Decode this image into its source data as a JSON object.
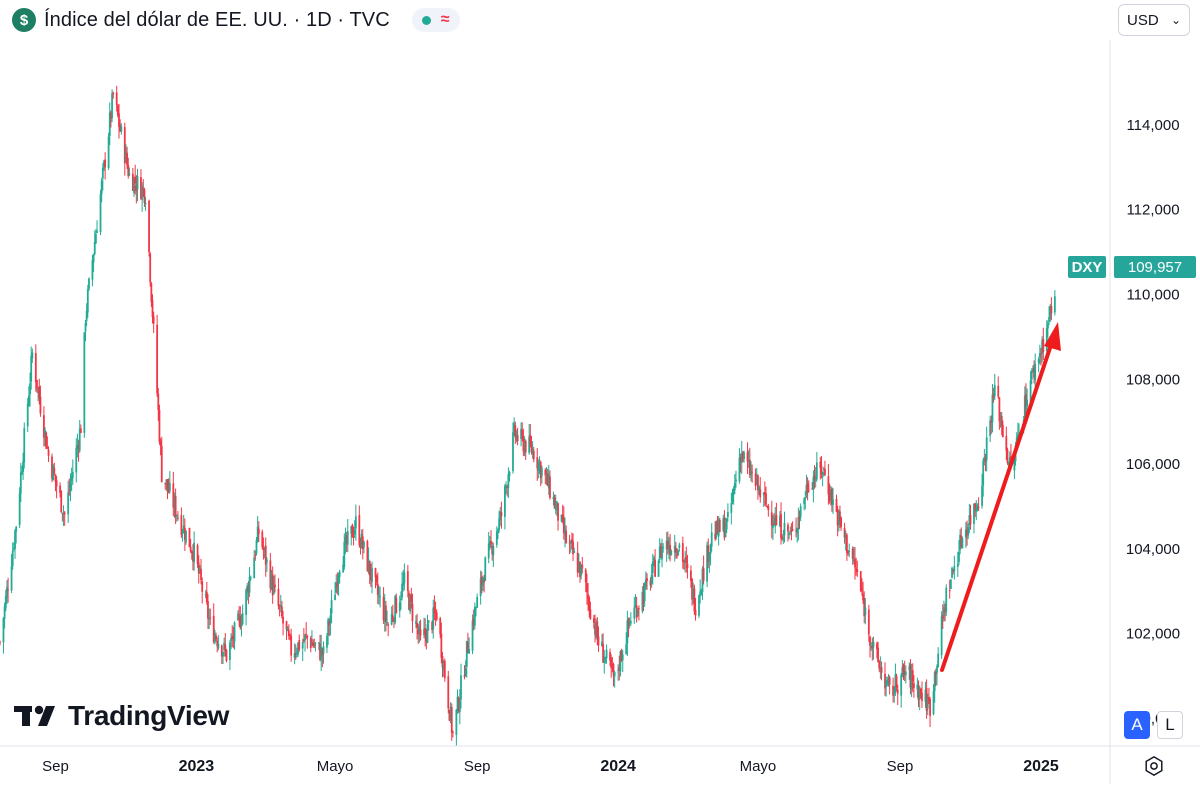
{
  "header": {
    "symbol_icon": "dollar-sign-icon",
    "title": "Índice del dólar de EE. UU. · 1D · TVC",
    "status_icon": "market-status-icon",
    "wave_icon": "approx-wave-icon",
    "wave_glyph": "≈"
  },
  "currency": {
    "label": "USD",
    "icon": "chevron-down-icon"
  },
  "price_label": {
    "ticker": "DXY",
    "value": "109,957"
  },
  "watermark": {
    "text": "TradingView",
    "icon": "tradingview-logo-icon"
  },
  "scale_buttons": {
    "auto": "A",
    "log": "L"
  },
  "settings": {
    "icon": "settings-gear-icon"
  },
  "colors": {
    "up": "#22ab94",
    "down": "#f23645",
    "accent": "#2962ff",
    "arrow": "#ee1c1c",
    "price_tag": "#26a69a"
  },
  "chart_data": {
    "type": "candlestick",
    "title": "Índice del dólar de EE. UU. · 1D · TVC",
    "xlabel": "",
    "ylabel": "",
    "ylim": [
      99.4,
      116
    ],
    "xlim": [
      "2022-07-15",
      "2025-02-28"
    ],
    "x_ticks": [
      {
        "label": "Sep",
        "date": "2022-09-01"
      },
      {
        "label": "2023",
        "date": "2023-01-01"
      },
      {
        "label": "Mayo",
        "date": "2023-05-01"
      },
      {
        "label": "Sep",
        "date": "2023-09-01"
      },
      {
        "label": "2024",
        "date": "2024-01-01"
      },
      {
        "label": "Mayo",
        "date": "2024-05-01"
      },
      {
        "label": "Sep",
        "date": "2024-09-01"
      },
      {
        "label": "2025",
        "date": "2025-01-01"
      }
    ],
    "y_ticks": [
      "100,000",
      "102,000",
      "104,000",
      "106,000",
      "108,000",
      "110,000",
      "112,000",
      "114,000"
    ],
    "y_tick_values": [
      100,
      102,
      104,
      106,
      108,
      110,
      112,
      114
    ],
    "last_value": 109.957,
    "grid": false,
    "series": [
      {
        "name": "DXY",
        "x": [
          "2022-07-15",
          "2022-07-29",
          "2022-08-12",
          "2022-08-26",
          "2022-09-09",
          "2022-09-23",
          "2022-09-27",
          "2022-10-07",
          "2022-10-21",
          "2022-11-04",
          "2022-11-18",
          "2022-12-02",
          "2022-12-16",
          "2022-12-30",
          "2023-01-13",
          "2023-01-27",
          "2023-02-10",
          "2023-02-24",
          "2023-03-10",
          "2023-03-24",
          "2023-04-07",
          "2023-04-21",
          "2023-05-05",
          "2023-05-19",
          "2023-06-02",
          "2023-06-16",
          "2023-06-30",
          "2023-07-14",
          "2023-07-28",
          "2023-08-11",
          "2023-08-25",
          "2023-09-08",
          "2023-09-22",
          "2023-10-03",
          "2023-10-20",
          "2023-11-03",
          "2023-11-17",
          "2023-12-01",
          "2023-12-15",
          "2023-12-29",
          "2024-01-12",
          "2024-01-26",
          "2024-02-09",
          "2024-02-23",
          "2024-03-08",
          "2024-03-22",
          "2024-04-05",
          "2024-04-16",
          "2024-05-03",
          "2024-05-17",
          "2024-05-31",
          "2024-06-14",
          "2024-06-26",
          "2024-07-12",
          "2024-07-26",
          "2024-08-09",
          "2024-08-23",
          "2024-09-06",
          "2024-09-27",
          "2024-10-11",
          "2024-10-25",
          "2024-11-08",
          "2024-11-22",
          "2024-12-06",
          "2024-12-20",
          "2025-01-03",
          "2025-01-13"
        ],
        "y": [
          101.8,
          104.6,
          108.6,
          106.2,
          104.8,
          106.9,
          109.5,
          111.7,
          114.7,
          112.8,
          112.4,
          105.8,
          104.8,
          103.9,
          102.2,
          101.5,
          102.5,
          104.4,
          102.9,
          101.6,
          101.9,
          101.5,
          103.7,
          104.6,
          103.3,
          102.2,
          103.2,
          101.8,
          102.5,
          99.6,
          101.9,
          103.6,
          104.8,
          106.7,
          106.3,
          105.4,
          104.2,
          103.4,
          101.8,
          100.9,
          102.4,
          103.1,
          104.1,
          104.1,
          102.7,
          104.3,
          104.6,
          106.3,
          105.3,
          104.6,
          104.3,
          105.6,
          105.9,
          104.5,
          103.4,
          101.6,
          100.6,
          101.1,
          100.3,
          102.9,
          104.3,
          105.2,
          107.8,
          105.8,
          107.7,
          108.9,
          109.957
        ]
      }
    ]
  }
}
